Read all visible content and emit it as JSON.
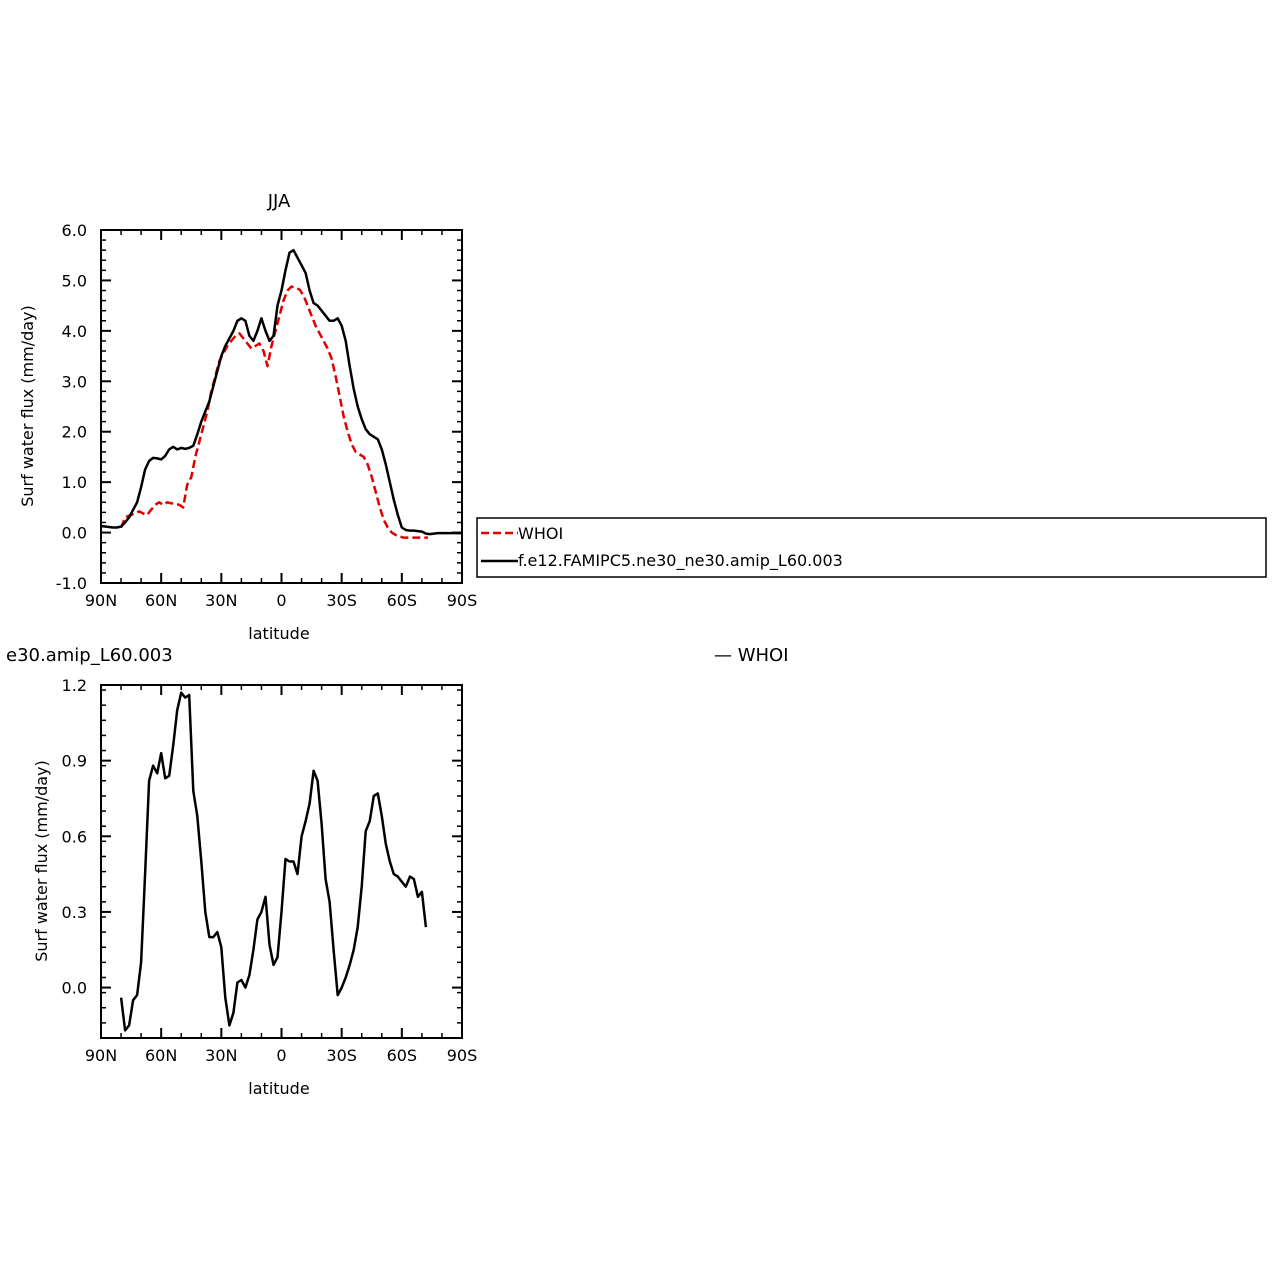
{
  "chart_data": [
    {
      "type": "line",
      "title": "JJA",
      "xlabel": "latitude",
      "ylabel": "Surf water flux (mm/day)",
      "xlim": [
        90,
        -90
      ],
      "ylim": [
        -1.0,
        6.0
      ],
      "x_ticks": [
        90,
        60,
        30,
        0,
        -30,
        -60,
        -90
      ],
      "x_tick_labels": [
        "90N",
        "60N",
        "30N",
        "0",
        "30S",
        "60S",
        "90S"
      ],
      "y_ticks": [
        -1,
        0,
        1,
        2,
        3,
        4,
        5,
        6
      ],
      "y_tick_labels": [
        "-1.0",
        "0.0",
        "1.0",
        "2.0",
        "3.0",
        "4.0",
        "5.0",
        "6.0"
      ],
      "legend": "right, boxed",
      "series": [
        {
          "name": "WHOI",
          "color": "#e00000",
          "dash": "dashed",
          "x": [
            80,
            78,
            75,
            73,
            71,
            69,
            67,
            65,
            63,
            61,
            59,
            57,
            55,
            53,
            51,
            49,
            47,
            45,
            43,
            41,
            39,
            37,
            35,
            33,
            31,
            29,
            27,
            25,
            23,
            21,
            19,
            17,
            15,
            13,
            11,
            9,
            7,
            5,
            3,
            1,
            -1,
            -3,
            -5,
            -7,
            -9,
            -11,
            -13,
            -15,
            -17,
            -19,
            -21,
            -23,
            -25,
            -27,
            -29,
            -31,
            -33,
            -35,
            -37,
            -39,
            -41,
            -43,
            -45,
            -47,
            -49,
            -51,
            -53,
            -55,
            -57,
            -59,
            -61,
            -63,
            -65,
            -67,
            -69,
            -71,
            -73
          ],
          "y": [
            0.1,
            0.3,
            0.35,
            0.38,
            0.42,
            0.38,
            0.35,
            0.45,
            0.55,
            0.6,
            0.55,
            0.6,
            0.58,
            0.57,
            0.55,
            0.5,
            0.95,
            1.1,
            1.5,
            1.8,
            2.1,
            2.4,
            2.8,
            3.1,
            3.4,
            3.55,
            3.7,
            3.8,
            3.9,
            3.95,
            3.85,
            3.75,
            3.65,
            3.7,
            3.75,
            3.6,
            3.3,
            3.7,
            4.0,
            4.3,
            4.6,
            4.8,
            4.88,
            4.85,
            4.82,
            4.7,
            4.5,
            4.3,
            4.1,
            3.95,
            3.8,
            3.65,
            3.45,
            3.1,
            2.7,
            2.3,
            2.0,
            1.75,
            1.6,
            1.55,
            1.5,
            1.35,
            1.1,
            0.8,
            0.5,
            0.25,
            0.1,
            0.0,
            -0.05,
            -0.08,
            -0.1,
            -0.1,
            -0.1,
            -0.1,
            -0.1,
            -0.1,
            -0.1
          ]
        },
        {
          "name": "f.e12.FAMIPC5.ne30_ne30.amip_L60.003",
          "color": "#000000",
          "dash": "solid",
          "x": [
            90,
            86,
            84,
            82,
            80,
            78,
            76,
            74,
            72,
            70,
            68,
            66,
            64,
            62,
            60,
            58,
            56,
            54,
            52,
            50,
            48,
            46,
            44,
            42,
            40,
            38,
            36,
            34,
            32,
            30,
            28,
            26,
            24,
            22,
            20,
            18,
            16,
            14,
            12,
            10,
            8,
            6,
            4,
            2,
            0,
            -2,
            -4,
            -6,
            -8,
            -10,
            -12,
            -14,
            -16,
            -18,
            -20,
            -22,
            -24,
            -26,
            -28,
            -30,
            -32,
            -34,
            -36,
            -38,
            -40,
            -42,
            -44,
            -46,
            -48,
            -50,
            -52,
            -54,
            -56,
            -58,
            -60,
            -62,
            -64,
            -66,
            -68,
            -70,
            -72,
            -74,
            -76,
            -78,
            -80,
            -82,
            -84,
            -86,
            -88,
            -90
          ],
          "y": [
            0.13,
            0.11,
            0.1,
            0.1,
            0.12,
            0.2,
            0.3,
            0.45,
            0.6,
            0.9,
            1.25,
            1.42,
            1.48,
            1.47,
            1.45,
            1.52,
            1.65,
            1.7,
            1.65,
            1.68,
            1.66,
            1.68,
            1.72,
            1.95,
            2.2,
            2.4,
            2.6,
            2.9,
            3.2,
            3.5,
            3.7,
            3.85,
            4.0,
            4.2,
            4.25,
            4.2,
            3.9,
            3.8,
            4.0,
            4.25,
            4.0,
            3.8,
            3.9,
            4.5,
            4.8,
            5.2,
            5.55,
            5.6,
            5.45,
            5.3,
            5.15,
            4.8,
            4.55,
            4.5,
            4.4,
            4.3,
            4.2,
            4.2,
            4.25,
            4.1,
            3.8,
            3.3,
            2.85,
            2.5,
            2.25,
            2.05,
            1.95,
            1.9,
            1.85,
            1.65,
            1.35,
            1.0,
            0.65,
            0.35,
            0.1,
            0.05,
            0.04,
            0.04,
            0.03,
            0.02,
            -0.02,
            -0.03,
            -0.02,
            -0.01,
            -0.01,
            -0.01,
            -0.01,
            -0.01,
            -0.01,
            -0.01
          ]
        }
      ]
    },
    {
      "type": "line",
      "title": "e30.amip_L60.003",
      "subtitle": "— WHOI",
      "xlabel": "latitude",
      "ylabel": "Surf water flux (mm/day)",
      "xlim": [
        90,
        -90
      ],
      "ylim": [
        -0.2,
        1.2
      ],
      "x_ticks": [
        90,
        60,
        30,
        0,
        -30,
        -60,
        -90
      ],
      "x_tick_labels": [
        "90N",
        "60N",
        "30N",
        "0",
        "30S",
        "60S",
        "90S"
      ],
      "y_ticks": [
        0.0,
        0.3,
        0.6,
        0.9,
        1.2
      ],
      "y_tick_labels": [
        "0.0",
        "0.3",
        "0.6",
        "0.9",
        "1.2"
      ],
      "series": [
        {
          "color": "#000000",
          "dash": "solid",
          "x": [
            80,
            78,
            76,
            74,
            72,
            70,
            68,
            66,
            64,
            62,
            60,
            58,
            56,
            54,
            52,
            50,
            48,
            46,
            44,
            42,
            40,
            38,
            36,
            34,
            32,
            30,
            28,
            26,
            24,
            22,
            20,
            18,
            16,
            14,
            12,
            10,
            8,
            6,
            4,
            2,
            0,
            -2,
            -4,
            -6,
            -8,
            -10,
            -12,
            -14,
            -16,
            -18,
            -20,
            -22,
            -24,
            -26,
            -28,
            -30,
            -32,
            -34,
            -36,
            -38,
            -40,
            -42,
            -44,
            -46,
            -48,
            -50,
            -52,
            -54,
            -56,
            -58,
            -60,
            -62,
            -64,
            -66,
            -68,
            -70,
            -72
          ],
          "y": [
            -0.04,
            -0.17,
            -0.15,
            -0.05,
            -0.03,
            0.1,
            0.45,
            0.82,
            0.88,
            0.85,
            0.93,
            0.83,
            0.84,
            0.96,
            1.1,
            1.17,
            1.15,
            1.16,
            0.78,
            0.68,
            0.5,
            0.3,
            0.2,
            0.2,
            0.22,
            0.16,
            -0.04,
            -0.15,
            -0.1,
            0.02,
            0.03,
            0.0,
            0.05,
            0.15,
            0.27,
            0.3,
            0.36,
            0.17,
            0.09,
            0.12,
            0.3,
            0.51,
            0.5,
            0.5,
            0.45,
            0.6,
            0.66,
            0.73,
            0.86,
            0.82,
            0.65,
            0.43,
            0.34,
            0.15,
            -0.03,
            0.0,
            0.04,
            0.09,
            0.15,
            0.24,
            0.4,
            0.62,
            0.66,
            0.76,
            0.77,
            0.68,
            0.57,
            0.5,
            0.45,
            0.44,
            0.42,
            0.4,
            0.44,
            0.43,
            0.36,
            0.38,
            0.24
          ]
        }
      ]
    }
  ]
}
